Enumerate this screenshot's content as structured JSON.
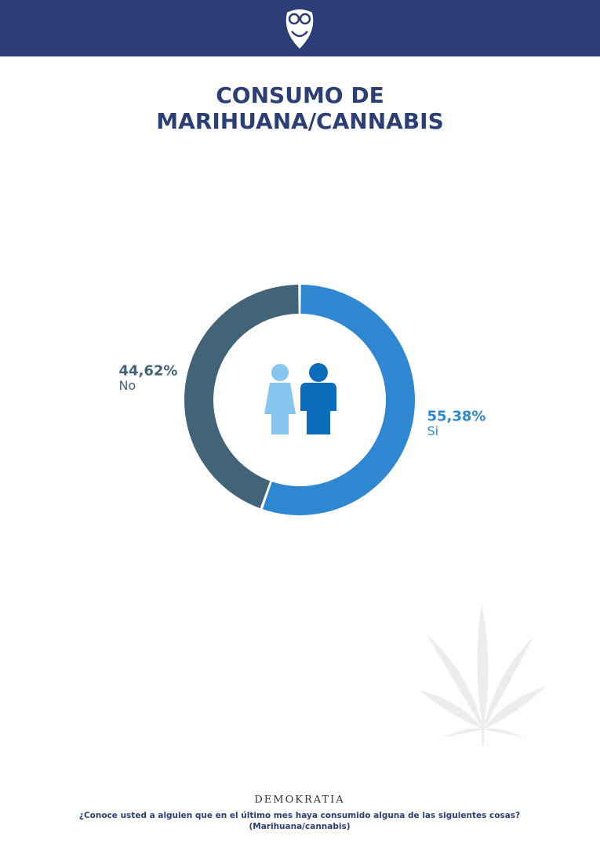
{
  "chart_data": {
    "type": "donut",
    "title": "CONSUMO DE MARIHUANA/CANNABIS",
    "categories": [
      "Si",
      "No"
    ],
    "values": [
      55.38,
      44.62
    ],
    "value_labels": [
      "55,38%",
      "44,62%"
    ],
    "colors": [
      "#2f86d1",
      "#436379"
    ]
  },
  "footer": {
    "brand": "DEMOKRATIA",
    "question": "¿Conoce usted a alguien que en el último mes haya consumido alguna de las siguientes cosas?",
    "option": "(Marihuana/cannabis)"
  }
}
